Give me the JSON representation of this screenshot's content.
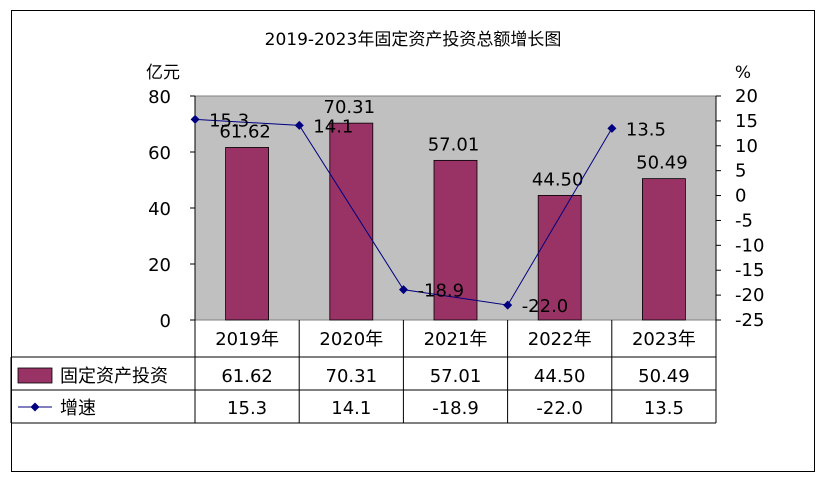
{
  "chart_data": {
    "type": "bar+line",
    "title": "2019-2023年固定资产投资总额增长图",
    "categories": [
      "2019年",
      "2020年",
      "2021年",
      "2022年",
      "2023年"
    ],
    "y_left": {
      "unit": "亿元",
      "ylim": [
        0,
        80
      ],
      "ticks": [
        "0",
        "20",
        "40",
        "60",
        "80"
      ]
    },
    "y_right": {
      "unit": "%",
      "ylim": [
        -25,
        20
      ],
      "ticks": [
        "20",
        "15",
        "10",
        "5",
        "0",
        "-5",
        "-10",
        "-15",
        "-20",
        "-25"
      ]
    },
    "series": [
      {
        "name": "固定资产投资",
        "type": "bar",
        "axis": "left",
        "values": [
          61.62,
          70.31,
          57.01,
          44.5,
          50.49
        ],
        "labels": [
          "61.62",
          "70.31",
          "57.01",
          "44.50",
          "50.49"
        ]
      },
      {
        "name": "增速",
        "type": "line",
        "axis": "right",
        "values": [
          15.3,
          14.1,
          -18.9,
          -22.0,
          13.5
        ],
        "labels": [
          "15.3",
          "14.1",
          "-18.9",
          "-22.0",
          "13.5"
        ]
      }
    ],
    "colors": {
      "bar": "#993366",
      "line": "#000080",
      "plot_bg": "#c0c0c0"
    },
    "grid": false,
    "legend": "data-table"
  }
}
